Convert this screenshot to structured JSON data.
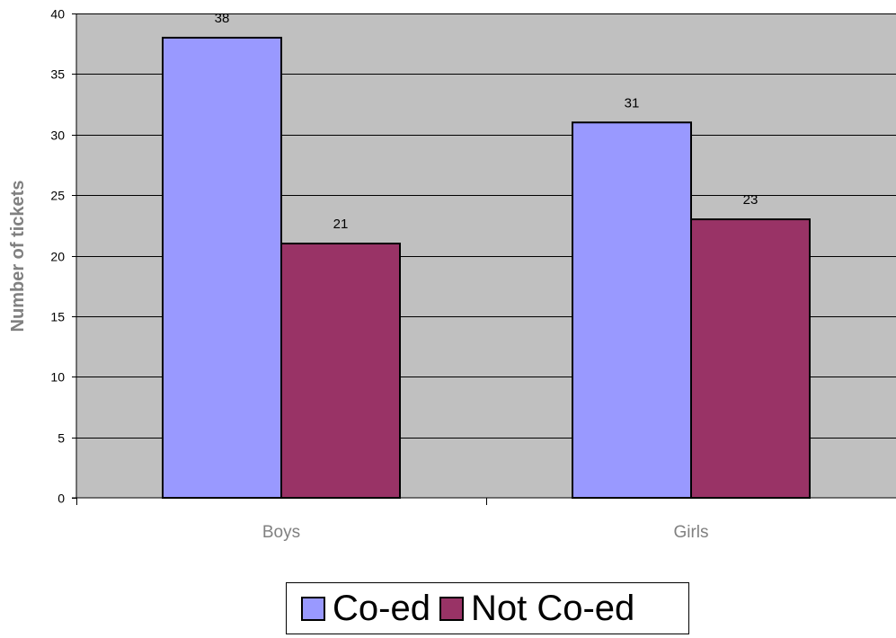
{
  "chart_data": {
    "type": "bar",
    "title": "",
    "xlabel": "",
    "ylabel": "Number of tickets",
    "categories": [
      "Boys",
      "Girls"
    ],
    "series": [
      {
        "name": "Co-ed",
        "values": [
          38,
          31
        ],
        "color": "#9999FF"
      },
      {
        "name": "Not Co-ed",
        "values": [
          21,
          23
        ],
        "color": "#993366"
      }
    ],
    "ylim": [
      0,
      40
    ],
    "yticks": [
      0,
      5,
      10,
      15,
      20,
      25,
      30,
      35,
      40
    ],
    "grid": true,
    "plot_background": "#C0C0C0",
    "legend_position": "bottom",
    "data_labels": true
  }
}
